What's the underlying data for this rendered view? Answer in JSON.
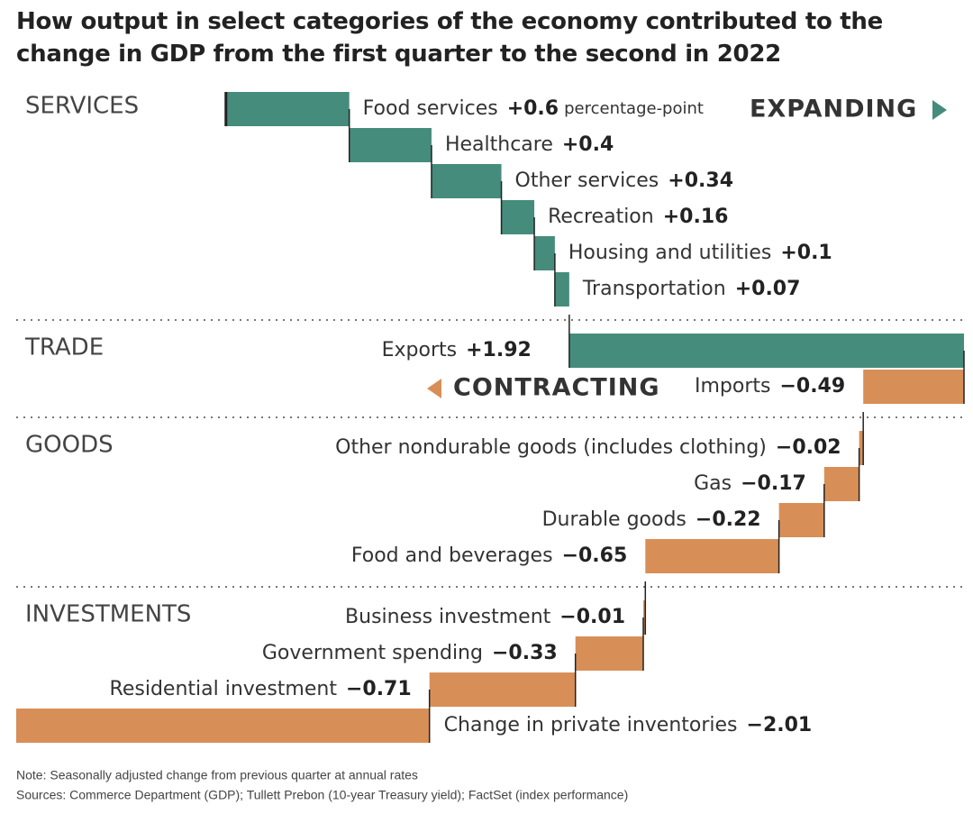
{
  "chart_data": {
    "type": "waterfall",
    "title": "How output in select categories of the economy contributed to the change in GDP from the first quarter to the second in 2022",
    "unit_label": "percentage-point",
    "annotations": {
      "expanding": "EXPANDING",
      "contracting": "CONTRACTING"
    },
    "colors": {
      "increase": "#458c7c",
      "decrease": "#d88f57"
    },
    "groups": [
      {
        "name": "SERVICES",
        "categories": [
          "Food services",
          "Healthcare",
          "Other services",
          "Recreation",
          "Housing and utilities",
          "Transportation"
        ],
        "values": [
          0.6,
          0.4,
          0.34,
          0.16,
          0.1,
          0.07
        ],
        "value_labels": [
          "+0.6",
          "+0.4",
          "+0.34",
          "+0.16",
          "+0.1",
          "+0.07"
        ]
      },
      {
        "name": "TRADE",
        "categories": [
          "Exports",
          "Imports"
        ],
        "values": [
          1.92,
          -0.49
        ],
        "value_labels": [
          "+1.92",
          "−0.49"
        ]
      },
      {
        "name": "GOODS",
        "categories": [
          "Other nondurable goods (includes clothing)",
          "Gas",
          "Durable goods",
          "Food and beverages"
        ],
        "values": [
          -0.02,
          -0.17,
          -0.22,
          -0.65
        ],
        "value_labels": [
          "−0.02",
          "−0.17",
          "−0.22",
          "−0.65"
        ]
      },
      {
        "name": "INVESTMENTS",
        "categories": [
          "Business investment",
          "Government spending",
          "Residential investment",
          "Change in private inventories"
        ],
        "values": [
          -0.01,
          -0.33,
          -0.71,
          -2.01
        ],
        "value_labels": [
          "−0.01",
          "−0.33",
          "−0.71",
          "−2.01"
        ]
      }
    ],
    "notes": [
      "Note: Seasonally adjusted change from previous quarter at annual rates",
      "Sources: Commerce Department (GDP); Tullett Prebon (10-year Treasury yield); FactSet (index performance)"
    ]
  }
}
